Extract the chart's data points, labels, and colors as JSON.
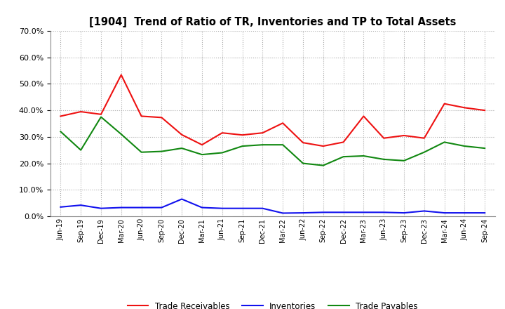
{
  "title": "[1904]  Trend of Ratio of TR, Inventories and TP to Total Assets",
  "x_labels": [
    "Jun-19",
    "Sep-19",
    "Dec-19",
    "Mar-20",
    "Jun-20",
    "Sep-20",
    "Dec-20",
    "Mar-21",
    "Jun-21",
    "Sep-21",
    "Dec-21",
    "Mar-22",
    "Jun-22",
    "Sep-22",
    "Dec-22",
    "Mar-23",
    "Jun-23",
    "Sep-23",
    "Dec-23",
    "Mar-24",
    "Jun-24",
    "Sep-24"
  ],
  "trade_receivables": [
    0.378,
    0.395,
    0.385,
    0.534,
    0.378,
    0.373,
    0.308,
    0.27,
    0.315,
    0.307,
    0.315,
    0.352,
    0.278,
    0.265,
    0.28,
    0.378,
    0.295,
    0.305,
    0.295,
    0.425,
    0.41,
    0.4
  ],
  "inventories": [
    0.035,
    0.042,
    0.03,
    0.033,
    0.033,
    0.033,
    0.065,
    0.033,
    0.03,
    0.03,
    0.03,
    0.012,
    0.013,
    0.015,
    0.015,
    0.015,
    0.015,
    0.013,
    0.02,
    0.013,
    0.013,
    0.013
  ],
  "trade_payables": [
    0.32,
    0.25,
    0.375,
    0.31,
    0.242,
    0.245,
    0.257,
    0.233,
    0.24,
    0.265,
    0.27,
    0.27,
    0.2,
    0.192,
    0.225,
    0.228,
    0.215,
    0.21,
    0.242,
    0.28,
    0.265,
    0.257
  ],
  "tr_color": "#ee1111",
  "inv_color": "#1111ee",
  "tp_color": "#118811",
  "ylim": [
    0.0,
    0.7
  ],
  "yticks": [
    0.0,
    0.1,
    0.2,
    0.3,
    0.4,
    0.5,
    0.6,
    0.7
  ],
  "bg_color": "#ffffff",
  "grid_color": "#aaaaaa",
  "legend_labels": [
    "Trade Receivables",
    "Inventories",
    "Trade Payables"
  ]
}
